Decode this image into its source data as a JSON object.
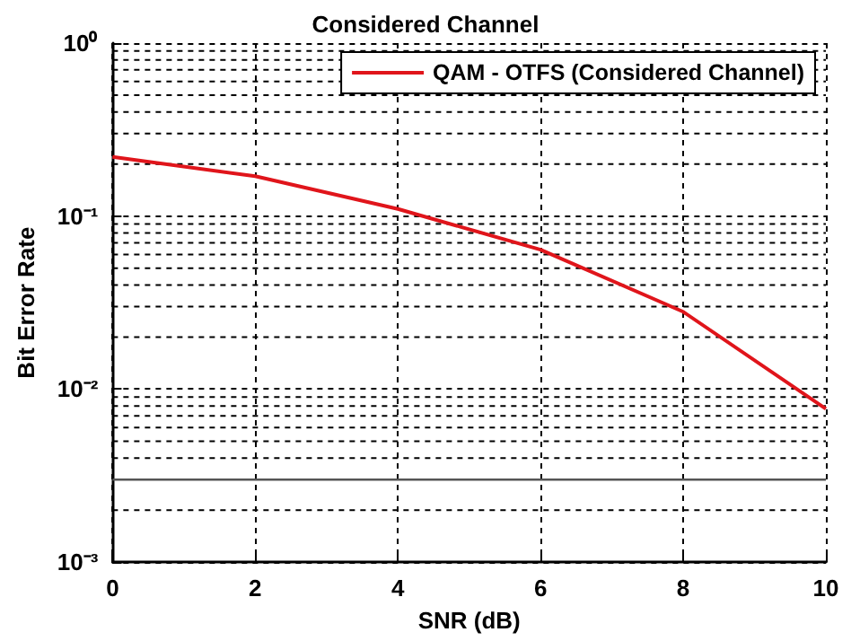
{
  "chart_data": {
    "type": "line",
    "title": "Considered Channel",
    "xlabel": "SNR (dB)",
    "ylabel": "Bit Error Rate",
    "x": [
      0,
      2,
      4,
      6,
      8,
      10
    ],
    "series": [
      {
        "name": "QAM - OTFS (Considered Channel)",
        "color": "#e0151b",
        "values": [
          0.22,
          0.17,
          0.11,
          0.064,
          0.028,
          0.0077
        ]
      }
    ],
    "xlim": [
      0,
      10
    ],
    "xticks": [
      0,
      2,
      4,
      6,
      8,
      10
    ],
    "ylim": [
      0.001,
      1
    ],
    "yticks": [
      {
        "value": 0.001,
        "label": "10⁻³"
      },
      {
        "value": 0.01,
        "label": "10⁻²"
      },
      {
        "value": 0.1,
        "label": "10⁻¹"
      },
      {
        "value": 1,
        "label": "10⁰"
      }
    ],
    "log": "y",
    "grid": true,
    "legend": "top right",
    "marker": "none",
    "line_style": "solid",
    "ref_lines": [
      {
        "axis": "y",
        "value": 0.003,
        "color": "#555555",
        "line_style": "solid"
      }
    ]
  }
}
